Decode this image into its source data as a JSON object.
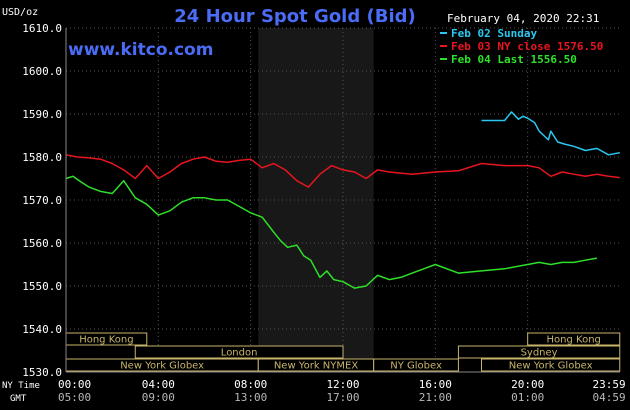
{
  "chart_data": {
    "type": "line",
    "title": "24 Hour Spot Gold (Bid)",
    "site": "www.kitco.com",
    "date_label": "February 04, 2020 22:31",
    "ylabel": "USD/oz",
    "ylim": [
      1530,
      1610
    ],
    "yticks": [
      "1530.0",
      "1540.0",
      "1550.0",
      "1560.0",
      "1570.0",
      "1580.0",
      "1590.0",
      "1600.0",
      "1610.0"
    ],
    "xlim": [
      0,
      24
    ],
    "x_ticks_ny": [
      "00:00",
      "04:00",
      "08:00",
      "12:00",
      "16:00",
      "20:00",
      "23:59"
    ],
    "x_ticks_gmt": [
      "05:00",
      "09:00",
      "13:00",
      "17:00",
      "21:00",
      "01:00",
      "04:59"
    ],
    "x_ticks_pos": [
      0,
      4,
      8,
      12,
      16,
      20,
      23.983
    ],
    "row_labels": {
      "ny": "NY Time",
      "gmt": "GMT"
    },
    "grid": true,
    "legend_position": "top-right",
    "shaded_hours": [
      8.33,
      13.33
    ],
    "colors": {
      "background": "#000000",
      "grid": "#555555",
      "axis_text": "#ffffff",
      "title": "#4a6cf7",
      "site": "#4a6cf7",
      "shade": "#181818",
      "sessions": "#c8b46a",
      "sessions_fill": "#000000"
    },
    "series": [
      {
        "name": "Feb 02 Sunday",
        "color": "#29c7f0",
        "x": [
          18.0,
          18.5,
          19.0,
          19.3,
          19.6,
          19.8,
          20.0,
          20.3,
          20.5,
          20.7,
          20.9,
          21.0,
          21.3,
          21.6,
          22.0,
          22.5,
          23.0,
          23.5,
          23.99
        ],
        "values": [
          1588.5,
          1588.5,
          1588.5,
          1590.5,
          1588.8,
          1589.5,
          1589.0,
          1588.0,
          1586.0,
          1585.0,
          1584.0,
          1586.0,
          1583.5,
          1583.0,
          1582.5,
          1581.5,
          1582.0,
          1580.5,
          1581.0
        ]
      },
      {
        "name": "Feb 03 NY close 1576.50",
        "color": "#e8151f",
        "x": [
          0,
          0.5,
          1.0,
          1.5,
          2.0,
          2.5,
          3.0,
          3.5,
          4.0,
          4.5,
          5.0,
          5.5,
          6.0,
          6.5,
          7.0,
          7.5,
          8.0,
          8.5,
          9.0,
          9.5,
          10.0,
          10.5,
          11.0,
          11.5,
          12.0,
          12.5,
          13.0,
          13.5,
          14.0,
          15.0,
          16.0,
          17.0,
          18.0,
          19.0,
          20.0,
          20.5,
          21.0,
          21.5,
          22.0,
          22.5,
          23.0,
          23.5,
          23.99
        ],
        "values": [
          1580.5,
          1580.0,
          1579.8,
          1579.5,
          1578.5,
          1577.0,
          1575.0,
          1578.0,
          1575.0,
          1576.5,
          1578.5,
          1579.5,
          1580.0,
          1579.0,
          1578.8,
          1579.2,
          1579.5,
          1577.5,
          1578.5,
          1577.0,
          1574.5,
          1573.0,
          1576.0,
          1578.0,
          1577.0,
          1576.5,
          1575.0,
          1577.0,
          1576.5,
          1576.0,
          1576.5,
          1576.8,
          1578.5,
          1578.0,
          1578.0,
          1577.5,
          1575.5,
          1576.5,
          1576.0,
          1575.5,
          1576.0,
          1575.5,
          1575.2
        ]
      },
      {
        "name": "Feb 04 Last 1556.50",
        "color": "#2fe028",
        "x": [
          0,
          0.3,
          0.7,
          1.0,
          1.5,
          2.0,
          2.5,
          3.0,
          3.5,
          4.0,
          4.5,
          5.0,
          5.5,
          6.0,
          6.5,
          7.0,
          7.5,
          8.0,
          8.5,
          9.0,
          9.3,
          9.6,
          10.0,
          10.3,
          10.6,
          11.0,
          11.3,
          11.6,
          12.0,
          12.5,
          13.0,
          13.5,
          14.0,
          14.5,
          15.0,
          15.5,
          16.0,
          17.0,
          18.0,
          19.0,
          20.0,
          20.5,
          21.0,
          21.5,
          22.0,
          22.5,
          23.0
        ],
        "values": [
          1575.0,
          1575.5,
          1574.0,
          1573.0,
          1572.0,
          1571.5,
          1574.5,
          1570.5,
          1569.0,
          1566.5,
          1567.5,
          1569.5,
          1570.5,
          1570.5,
          1570.0,
          1570.0,
          1568.5,
          1567.0,
          1566.0,
          1562.5,
          1560.5,
          1559.0,
          1559.5,
          1557.0,
          1556.0,
          1552.0,
          1553.5,
          1551.5,
          1551.0,
          1549.5,
          1550.0,
          1552.5,
          1551.5,
          1552.0,
          1553.0,
          1554.0,
          1555.0,
          1553.0,
          1553.5,
          1554.0,
          1555.0,
          1555.5,
          1555.0,
          1555.5,
          1555.5,
          1556.0,
          1556.5
        ]
      }
    ],
    "sessions": [
      {
        "label": "Hong Kong",
        "row": 0,
        "start": -4.0,
        "end": 3.5
      },
      {
        "label": "Hong Kong",
        "row": 0,
        "start": 20.0,
        "end": 23.99
      },
      {
        "label": "London",
        "row": 1,
        "start": 3.0,
        "end": 12.0
      },
      {
        "label": "Sydney",
        "row": 1,
        "start": 17.0,
        "end": 23.99
      },
      {
        "label": "New York Globex",
        "row": 2,
        "start": 0,
        "end": 8.33
      },
      {
        "label": "New York NYMEX",
        "row": 2,
        "start": 8.33,
        "end": 13.33
      },
      {
        "label": "NY Globex",
        "row": 2,
        "start": 13.33,
        "end": 17.0
      },
      {
        "label": "New York Globex",
        "row": 2,
        "start": 18.0,
        "end": 23.99
      }
    ]
  }
}
